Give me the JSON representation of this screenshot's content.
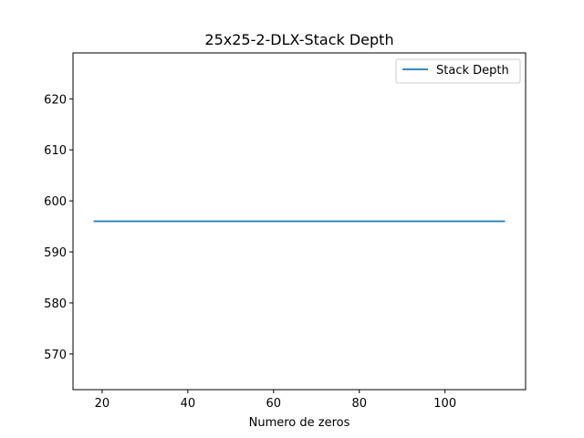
{
  "chart_data": {
    "type": "line",
    "title": "25x25-2-DLX-Stack Depth",
    "xlabel": "Numero de zeros",
    "ylabel": "",
    "xlim": [
      13.2,
      118.8
    ],
    "ylim": [
      563,
      629
    ],
    "xticks": [
      20,
      40,
      60,
      80,
      100
    ],
    "yticks": [
      570,
      580,
      590,
      600,
      610,
      620
    ],
    "grid": false,
    "legend_position": "top-right",
    "series": [
      {
        "name": "Stack Depth",
        "color": "#1f77b4",
        "x": [
          18,
          114
        ],
        "y": [
          596,
          596
        ]
      }
    ]
  }
}
